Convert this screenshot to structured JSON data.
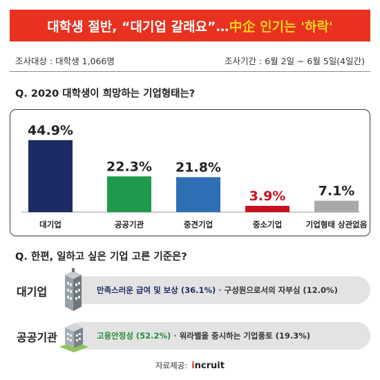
{
  "banner": {
    "title_part1": "대학생 절반, “대기업 갈래요”… ",
    "title_part2": "中企 인기는 '하락'"
  },
  "meta": {
    "subjects": "조사대상 : 대학생 1,066명",
    "period": "조사기간 : 6월 2일 ~ 6월 5일(4일간)"
  },
  "question1": "Q. 2020 대학생이 희망하는 기업형태는?",
  "question2": "Q. 한편, 일하고 싶은 기업 고른 기준은?",
  "chart_data": {
    "type": "bar",
    "categories": [
      "대기업",
      "공공기관",
      "중견기업",
      "중소기업",
      "기업형태 상관없음"
    ],
    "values": [
      44.9,
      22.3,
      21.8,
      3.9,
      7.1
    ],
    "value_labels": [
      "44.9%",
      "22.3%",
      "21.8%",
      "3.9%",
      "7.1%"
    ],
    "colors": [
      "#1c2a66",
      "#1f9a4c",
      "#2f6fb6",
      "#c8101e",
      "#a9a9a9"
    ],
    "label_colors": [
      "#222222",
      "#222222",
      "#222222",
      "#c8101e",
      "#222222"
    ],
    "ylim": [
      0,
      50
    ],
    "grid": false
  },
  "criteria": [
    {
      "label": "대기업",
      "icon": "skyscraper-icon",
      "primary": "만족스러운 급여 및 보상 (36.1%)",
      "separator": "·",
      "secondary": "구성원으로서의 자부심 (12.0%)",
      "primary_color": "#1f2d66"
    },
    {
      "label": "공공기관",
      "icon": "office-building-icon",
      "primary": "고용안정성 (52.2%)",
      "separator": "·",
      "secondary": "워라밸을 중시하는 기업풍토 (19.3%)",
      "primary_color": "#2a8a3a"
    }
  ],
  "footer": {
    "source_label": "자료제공:",
    "logo_mark": "i",
    "logo_rest": "ncruit"
  }
}
